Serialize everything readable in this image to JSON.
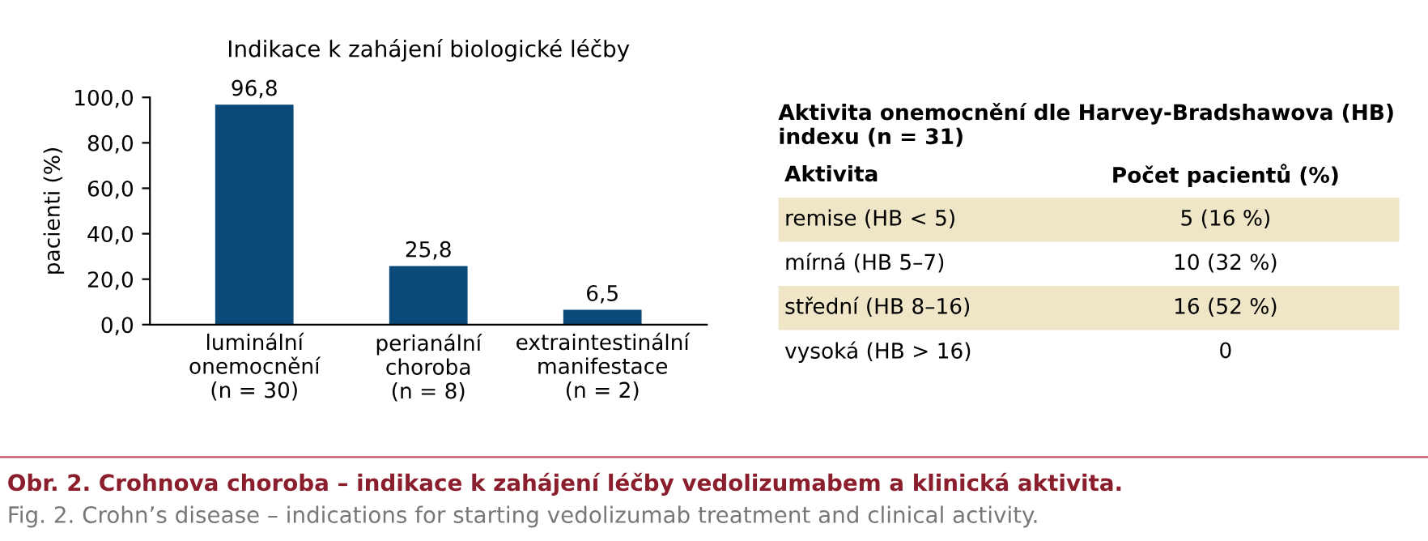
{
  "chart_data": [
    {
      "type": "bar",
      "title": "Indikace k zahájení biologické léčby",
      "ylabel": "pacienti (%)",
      "categories": [
        "luminální\nonemocnění\n(n = 30)",
        "perianální\nchoroba\n(n = 8)",
        "extraintestinální\nmanifestace\n(n = 2)"
      ],
      "values": [
        96.8,
        25.8,
        6.5
      ],
      "value_labels": [
        "96,8",
        "25,8",
        "6,5"
      ],
      "color": "#0b4a78",
      "ylim": [
        0,
        100
      ],
      "yticks": [
        {
          "value": 0,
          "label": "0,0"
        },
        {
          "value": 20,
          "label": "20,0"
        },
        {
          "value": 40,
          "label": "40,0"
        },
        {
          "value": 60,
          "label": "60,0"
        },
        {
          "value": 80,
          "label": "80,0"
        },
        {
          "value": 100,
          "label": "100,0"
        }
      ],
      "grid": false,
      "annotations": [
        "Obr. 2. Crohnova choroba – indikace k zahájení léčby vedolizumabem a klinická aktivita.",
        "Fig. 2. Crohn’s disease – indications for starting vedolizumab treatment and clinical activity."
      ]
    },
    {
      "type": "other",
      "title": "Aktivita onemocnění dle Harvey-Bradshawova (HB) indexu (n = 31)",
      "annotations": [
        "Aktivita",
        "Počet pacientů (%)",
        "remise (HB < 5)",
        "5 (16 %)",
        "mírná (HB 5–7)",
        "10 (32 %)",
        "střední (HB 8–16)",
        "16 (52 %)",
        "vysoká (HB > 16)",
        "0"
      ]
    }
  ]
}
